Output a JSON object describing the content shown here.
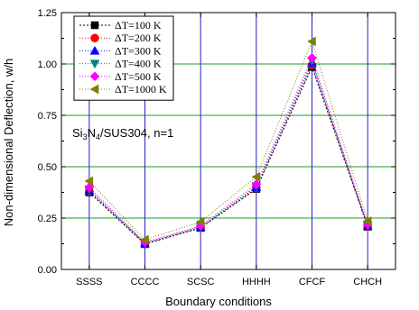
{
  "chart_data": {
    "type": "line",
    "xlabel": "Boundary conditions",
    "ylabel": "Non-dimensional Deflection, w/h",
    "categories": [
      "SSSS",
      "CCCC",
      "SCSC",
      "HHHH",
      "CFCF",
      "CHCH"
    ],
    "ylim": [
      0,
      1.25
    ],
    "yticks": [
      "0.00",
      "0.25",
      "0.50",
      "0.75",
      "1.00",
      "1.25"
    ],
    "grid": {
      "vertical_color": "#2222cc",
      "horizontal_color": "#229922"
    },
    "legend_position": "top-left",
    "annotation": {
      "base": "Si",
      "sub1": "3",
      "mid": "N",
      "sub2": "4",
      "rest": "/SUS304, n=1"
    },
    "series": [
      {
        "name": "ΔT=100 K",
        "color": "#000000",
        "marker": "square",
        "dash": "2,2",
        "values": [
          0.375,
          0.123,
          0.202,
          0.392,
          0.985,
          0.208
        ]
      },
      {
        "name": "ΔT=200 K",
        "color": "#ff0000",
        "marker": "circle",
        "dash": "1,2",
        "values": [
          0.38,
          0.125,
          0.204,
          0.396,
          0.995,
          0.21
        ]
      },
      {
        "name": "ΔT=300 K",
        "color": "#0000ff",
        "marker": "triangle-up",
        "dash": "1,2",
        "values": [
          0.385,
          0.127,
          0.206,
          0.4,
          1.005,
          0.212
        ]
      },
      {
        "name": "ΔT=400 K",
        "color": "#008080",
        "marker": "triangle-down",
        "dash": "1,2",
        "values": [
          0.39,
          0.129,
          0.208,
          0.405,
          1.015,
          0.214
        ]
      },
      {
        "name": "ΔT=500 K",
        "color": "#ff00ff",
        "marker": "diamond",
        "dash": "1,2",
        "values": [
          0.4,
          0.132,
          0.212,
          0.415,
          1.03,
          0.218
        ]
      },
      {
        "name": "ΔT=1000 K",
        "color": "#808000",
        "marker": "triangle-left",
        "dash": "1,2",
        "values": [
          0.43,
          0.145,
          0.232,
          0.45,
          1.11,
          0.235
        ]
      }
    ]
  }
}
